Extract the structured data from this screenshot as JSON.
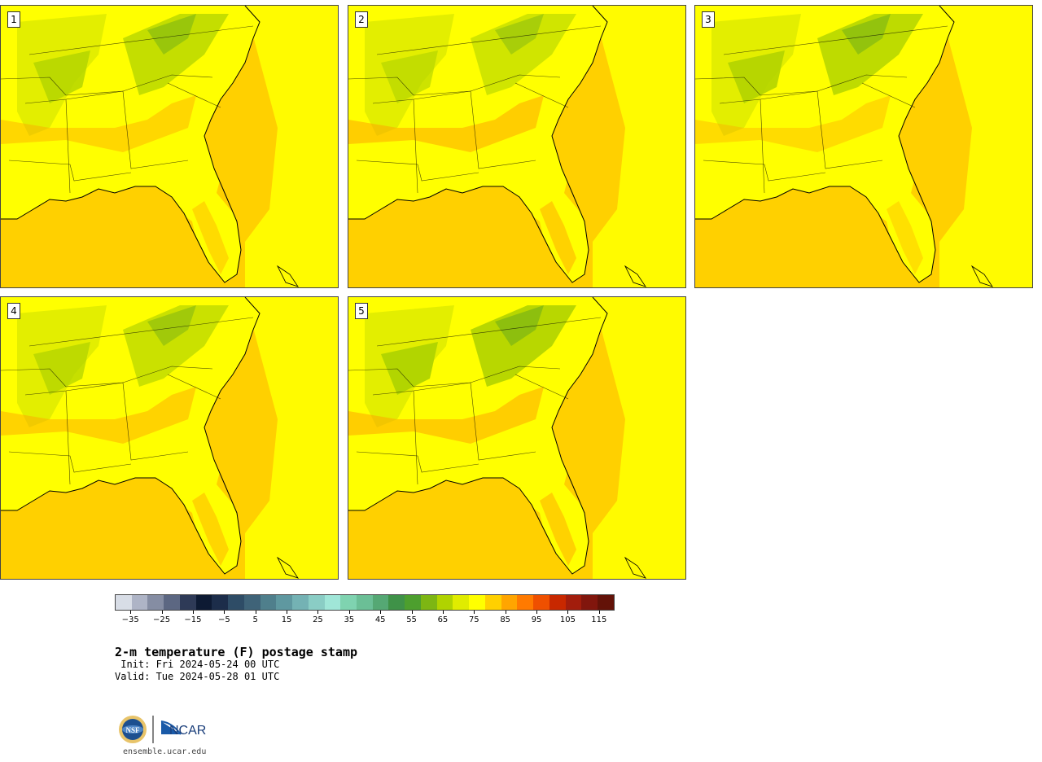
{
  "panels": [
    {
      "label": "1"
    },
    {
      "label": "2"
    },
    {
      "label": "3"
    },
    {
      "label": "4"
    },
    {
      "label": "5"
    }
  ],
  "colorbar": {
    "colors": [
      "#d8dde6",
      "#aeb4c6",
      "#858da3",
      "#5c6782",
      "#2e3a57",
      "#0d1a33",
      "#1c2d4a",
      "#2e4c66",
      "#3f6378",
      "#4f7f8c",
      "#5f98a0",
      "#74b2b4",
      "#8acdc5",
      "#a0e6d8",
      "#7fd3b0",
      "#6bbf96",
      "#55a874",
      "#3f9248",
      "#4d9f2e",
      "#7db613",
      "#b0d300",
      "#e0ec00",
      "#ffff00",
      "#ffd000",
      "#ffa500",
      "#ff7a00",
      "#ef5000",
      "#c82800",
      "#a21d0c",
      "#81160d",
      "#631208"
    ],
    "tick_labels": [
      "−35",
      "−25",
      "−15",
      "−5",
      "5",
      "15",
      "25",
      "35",
      "45",
      "55",
      "65",
      "75",
      "85",
      "95",
      "105",
      "115"
    ]
  },
  "title": "2-m temperature (F) postage stamp",
  "init_line": " Init: Fri 2024-05-24 00 UTC",
  "valid_line": "Valid: Tue 2024-05-28 01 UTC",
  "logos": {
    "nsf": "NSF",
    "ncar": "NCAR"
  },
  "site": "ensemble.ucar.edu",
  "map_colors": {
    "ocean_warm": "#ffd000",
    "land_hot": "#ffa500",
    "land_warm": "#ffff00",
    "land_mild": "#e0ec00",
    "land_cool": "#b0d300",
    "land_cooler": "#7db613",
    "border": "#000000"
  }
}
